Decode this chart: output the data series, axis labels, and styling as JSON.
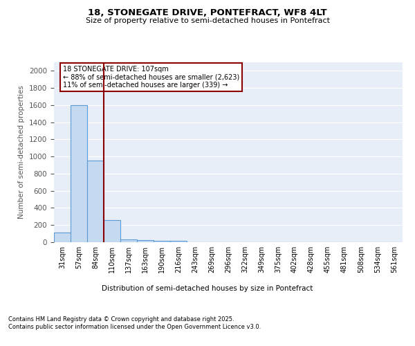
{
  "title_line1": "18, STONEGATE DRIVE, PONTEFRACT, WF8 4LT",
  "title_line2": "Size of property relative to semi-detached houses in Pontefract",
  "xlabel": "Distribution of semi-detached houses by size in Pontefract",
  "ylabel": "Number of semi-detached properties",
  "bar_labels": [
    "31sqm",
    "57sqm",
    "84sqm",
    "110sqm",
    "137sqm",
    "163sqm",
    "190sqm",
    "216sqm",
    "243sqm",
    "269sqm",
    "296sqm",
    "322sqm",
    "349sqm",
    "375sqm",
    "402sqm",
    "428sqm",
    "455sqm",
    "481sqm",
    "508sqm",
    "534sqm",
    "561sqm"
  ],
  "bar_values": [
    110,
    1600,
    950,
    260,
    35,
    25,
    20,
    20,
    0,
    0,
    0,
    0,
    0,
    0,
    0,
    0,
    0,
    0,
    0,
    0,
    0
  ],
  "bar_color": "#c5d9f1",
  "bar_edge_color": "#5b9bd5",
  "vline_color": "#8b0000",
  "annotation_text": "18 STONEGATE DRIVE: 107sqm\n← 88% of semi-detached houses are smaller (2,623)\n11% of semi-detached houses are larger (339) →",
  "annotation_box_color": "#8b0000",
  "ylim": [
    0,
    2100
  ],
  "yticks": [
    0,
    200,
    400,
    600,
    800,
    1000,
    1200,
    1400,
    1600,
    1800,
    2000
  ],
  "footer_text": "Contains HM Land Registry data © Crown copyright and database right 2025.\nContains public sector information licensed under the Open Government Licence v3.0.",
  "background_color": "#ffffff",
  "plot_bg_color": "#e8eef8",
  "grid_color": "#ffffff"
}
